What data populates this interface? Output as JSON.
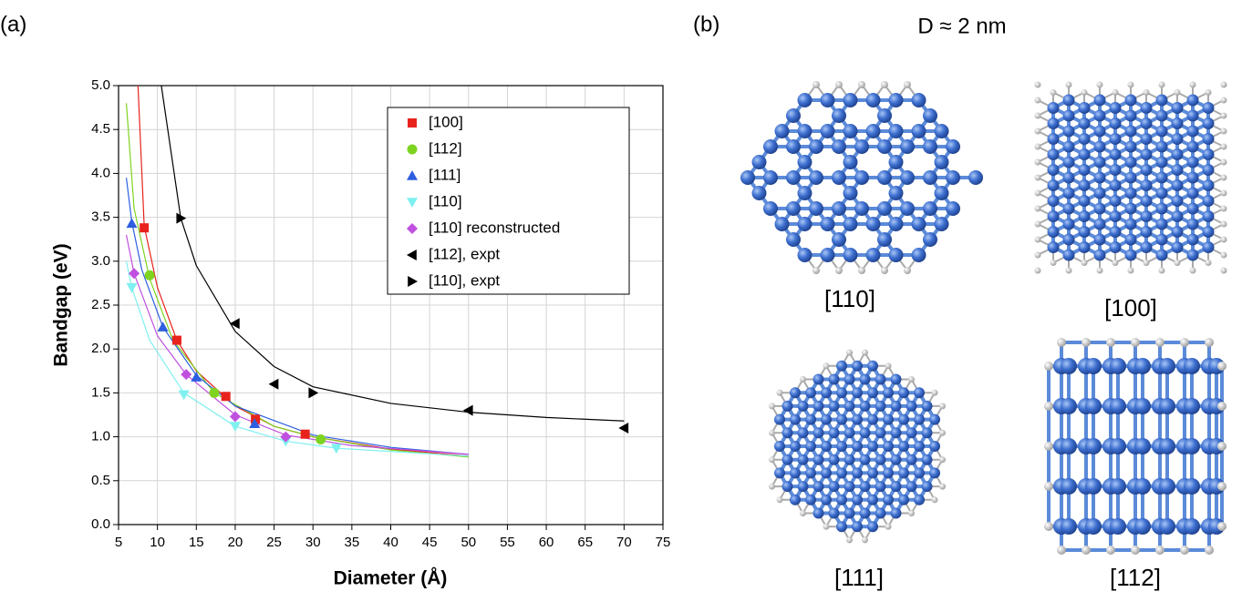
{
  "chart_data": {
    "type": "scatter",
    "panel": "(a)",
    "xlabel": "Diameter (Å)",
    "ylabel": "Bandgap (eV)",
    "xlim": [
      5,
      75
    ],
    "ylim": [
      0,
      5
    ],
    "xticks": [
      5,
      10,
      15,
      20,
      25,
      30,
      35,
      40,
      45,
      50,
      55,
      60,
      65,
      70,
      75
    ],
    "yticks": [
      {
        "value": 0,
        "label": "0.0"
      },
      0.5,
      {
        "value": 1,
        "label": "1.0"
      },
      1.5,
      {
        "value": 2,
        "label": "2.0"
      },
      2.5,
      {
        "value": 3,
        "label": "3.0"
      },
      3.5,
      {
        "value": 4,
        "label": "4.0"
      },
      4.5,
      {
        "value": 5,
        "label": "5.0"
      }
    ],
    "grid": true,
    "legend": "upper right",
    "series": [
      {
        "name": "[100]",
        "color": "#e8231c",
        "marker": "square",
        "x": [
          8.3,
          12.5,
          18.8,
          22.6,
          29
        ],
        "values": [
          3.38,
          2.1,
          1.46,
          1.2,
          1.03
        ],
        "fit": {
          "x": [
            7.5,
            8.3,
            10,
            12.5,
            15,
            20,
            25,
            30,
            40,
            50
          ],
          "y": [
            5.0,
            3.4,
            2.7,
            2.1,
            1.75,
            1.35,
            1.12,
            1.0,
            0.86,
            0.78
          ]
        }
      },
      {
        "name": "[112]",
        "color": "#7ed321",
        "marker": "circle",
        "x": [
          9,
          17.3,
          31
        ],
        "values": [
          2.84,
          1.5,
          0.97
        ],
        "fit": {
          "x": [
            6,
            7,
            9,
            12,
            17.3,
            25,
            30,
            40,
            50
          ],
          "y": [
            4.8,
            3.6,
            2.8,
            2.1,
            1.5,
            1.12,
            1.0,
            0.85,
            0.77
          ]
        }
      },
      {
        "name": "[111]",
        "color": "#2d5fe0",
        "marker": "triangle-up",
        "x": [
          6.7,
          10.7,
          15,
          22.5
        ],
        "values": [
          3.43,
          2.25,
          1.68,
          1.15
        ],
        "fit": {
          "x": [
            6,
            6.7,
            8,
            10.7,
            15,
            20,
            30,
            40,
            50
          ],
          "y": [
            3.95,
            3.45,
            2.9,
            2.25,
            1.7,
            1.35,
            1.02,
            0.88,
            0.8
          ]
        }
      },
      {
        "name": "[110]",
        "color": "#7ff0f0",
        "marker": "triangle-down",
        "x": [
          6.7,
          13.4,
          20,
          26.5,
          33
        ],
        "values": [
          2.7,
          1.48,
          1.12,
          0.95,
          0.87
        ],
        "fit": {
          "x": [
            6,
            6.7,
            9,
            13.4,
            20,
            26.5,
            33,
            50
          ],
          "y": [
            3.0,
            2.7,
            2.1,
            1.5,
            1.12,
            0.95,
            0.87,
            0.78
          ]
        }
      },
      {
        "name": "[110] reconstructed",
        "color": "#c050e0",
        "marker": "diamond",
        "x": [
          7,
          13.7,
          20,
          26.5
        ],
        "values": [
          2.86,
          1.71,
          1.23,
          1.0
        ],
        "fit": {
          "x": [
            6,
            7,
            10,
            13.7,
            20,
            26.5,
            35,
            50
          ],
          "y": [
            3.3,
            2.86,
            2.15,
            1.71,
            1.25,
            1.02,
            0.9,
            0.8
          ]
        }
      },
      {
        "name": "[112], expt",
        "color": "#000000",
        "marker": "triangle-left",
        "x": [
          20,
          25,
          50,
          70
        ],
        "values": [
          2.29,
          1.6,
          1.3,
          1.1
        ],
        "fit": {
          "x": [
            10.5,
            13,
            15,
            20,
            25,
            30,
            40,
            50,
            60,
            70
          ],
          "y": [
            5.0,
            3.49,
            2.95,
            2.2,
            1.8,
            1.57,
            1.38,
            1.28,
            1.22,
            1.18
          ]
        }
      },
      {
        "name": "[110], expt",
        "color": "#000000",
        "marker": "triangle-right",
        "x": [
          13,
          30
        ],
        "values": [
          3.49,
          1.5
        ]
      }
    ]
  },
  "panel_b": {
    "panel": "(b)",
    "title": "D ≈ 2 nm",
    "labels": [
      "[110]",
      "[100]",
      "[111]",
      "[112]"
    ]
  }
}
